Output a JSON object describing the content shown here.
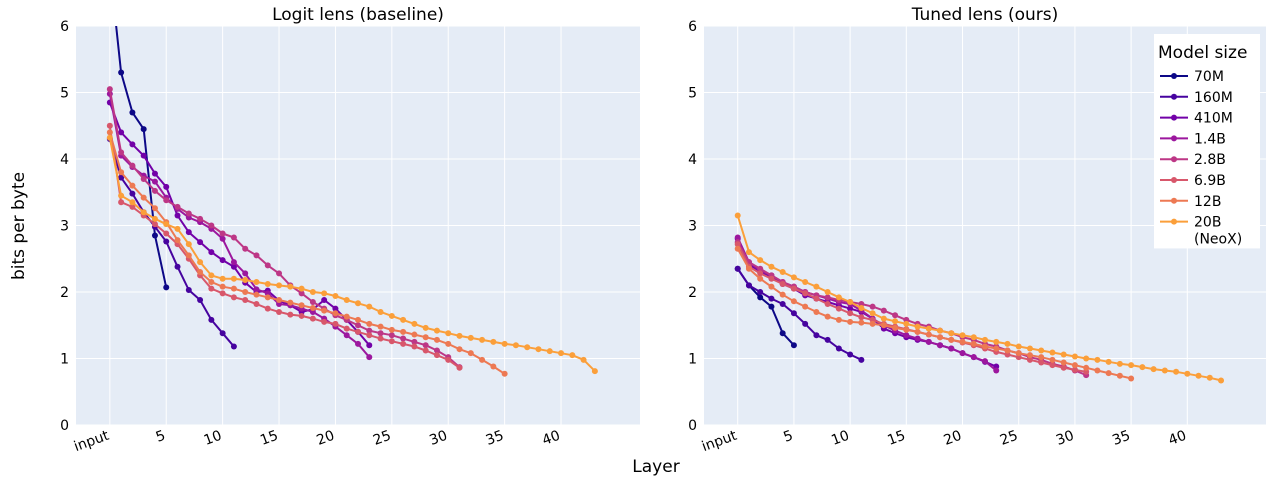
{
  "xlabel": "Layer",
  "ylabel": "bits per byte",
  "legend_title": "Model size",
  "series_colors": {
    "70M": "#0d0887",
    "160M": "#46039f",
    "410M": "#7201a8",
    "1.4B": "#9c179e",
    "2.8B": "#bd3786",
    "6.9B": "#d8576b",
    "12B": "#ed7953",
    "20B (NeoX)": "#fb9f3a"
  },
  "chart_data": [
    {
      "type": "line",
      "title": "Logit lens (baseline)",
      "ylim": [
        0,
        6
      ],
      "xlim": [
        -3,
        47
      ],
      "xticks": [
        0,
        5,
        10,
        15,
        20,
        25,
        30,
        35,
        40
      ],
      "xticklabels": [
        "input",
        "5",
        "10",
        "15",
        "20",
        "25",
        "30",
        "35",
        "40"
      ],
      "yticks": [
        0,
        1,
        2,
        3,
        4,
        5,
        6
      ],
      "grid": true,
      "series": [
        {
          "name": "70M",
          "x": [
            0,
            1,
            2,
            3,
            4,
            5
          ],
          "y": [
            6.9,
            5.3,
            4.7,
            4.45,
            2.85,
            2.07
          ]
        },
        {
          "name": "160M",
          "x": [
            0,
            1,
            2,
            3,
            4,
            5,
            6,
            7,
            8,
            9,
            10,
            11
          ],
          "y": [
            4.3,
            3.72,
            3.48,
            3.2,
            2.98,
            2.76,
            2.38,
            2.03,
            1.88,
            1.58,
            1.38,
            1.18
          ]
        },
        {
          "name": "410M",
          "x": [
            0,
            1,
            2,
            3,
            4,
            5,
            6,
            7,
            8,
            9,
            10,
            11,
            12,
            13,
            14,
            15,
            16,
            17,
            18,
            19,
            20,
            21,
            22,
            23
          ],
          "y": [
            4.85,
            4.4,
            4.22,
            4.05,
            3.78,
            3.58,
            3.15,
            2.9,
            2.75,
            2.6,
            2.48,
            2.38,
            2.14,
            2.0,
            2.02,
            1.87,
            1.8,
            1.7,
            1.74,
            1.88,
            1.75,
            1.58,
            1.4,
            1.2
          ]
        },
        {
          "name": "1.4B",
          "x": [
            0,
            1,
            2,
            3,
            4,
            5,
            6,
            7,
            8,
            9,
            10,
            11,
            12,
            13,
            14,
            15,
            16,
            17,
            18,
            19,
            20,
            21,
            22,
            23
          ],
          "y": [
            4.98,
            4.05,
            3.88,
            3.75,
            3.66,
            3.42,
            3.25,
            3.12,
            3.05,
            2.95,
            2.8,
            2.45,
            2.28,
            2.04,
            1.98,
            1.82,
            1.8,
            1.75,
            1.7,
            1.6,
            1.48,
            1.35,
            1.22,
            1.02
          ]
        },
        {
          "name": "2.8B",
          "x": [
            0,
            1,
            2,
            3,
            4,
            5,
            6,
            7,
            8,
            9,
            10,
            11,
            12,
            13,
            14,
            15,
            16,
            17,
            18,
            19,
            20,
            21,
            22,
            23,
            24,
            25,
            26,
            27,
            28,
            29,
            30,
            31
          ],
          "y": [
            5.05,
            4.1,
            3.9,
            3.7,
            3.52,
            3.38,
            3.28,
            3.18,
            3.1,
            3.0,
            2.88,
            2.82,
            2.65,
            2.55,
            2.4,
            2.28,
            2.1,
            1.98,
            1.85,
            1.75,
            1.65,
            1.58,
            1.5,
            1.42,
            1.38,
            1.35,
            1.3,
            1.25,
            1.2,
            1.12,
            1.02,
            0.87
          ]
        },
        {
          "name": "6.9B",
          "x": [
            0,
            1,
            2,
            3,
            4,
            5,
            6,
            7,
            8,
            9,
            10,
            11,
            12,
            13,
            14,
            15,
            16,
            17,
            18,
            19,
            20,
            21,
            22,
            23,
            24,
            25,
            26,
            27,
            28,
            29,
            30,
            31
          ],
          "y": [
            4.5,
            3.35,
            3.28,
            3.15,
            3.02,
            2.88,
            2.72,
            2.5,
            2.25,
            2.05,
            1.98,
            1.92,
            1.88,
            1.82,
            1.75,
            1.7,
            1.66,
            1.64,
            1.6,
            1.55,
            1.52,
            1.45,
            1.4,
            1.35,
            1.3,
            1.26,
            1.22,
            1.18,
            1.12,
            1.05,
            0.98,
            0.86
          ]
        },
        {
          "name": "12B",
          "x": [
            0,
            1,
            2,
            3,
            4,
            5,
            6,
            7,
            8,
            9,
            10,
            11,
            12,
            13,
            14,
            15,
            16,
            17,
            18,
            19,
            20,
            21,
            22,
            23,
            24,
            25,
            26,
            27,
            28,
            29,
            30,
            31,
            32,
            33,
            34,
            35
          ],
          "y": [
            4.4,
            3.8,
            3.6,
            3.42,
            3.26,
            3.05,
            2.78,
            2.55,
            2.3,
            2.15,
            2.08,
            2.05,
            2.0,
            1.96,
            1.92,
            1.88,
            1.84,
            1.8,
            1.76,
            1.72,
            1.68,
            1.63,
            1.58,
            1.52,
            1.48,
            1.43,
            1.4,
            1.36,
            1.32,
            1.28,
            1.22,
            1.14,
            1.08,
            0.98,
            0.88,
            0.77
          ]
        },
        {
          "name": "20B (NeoX)",
          "x": [
            0,
            1,
            2,
            3,
            4,
            5,
            6,
            7,
            8,
            9,
            10,
            11,
            12,
            13,
            14,
            15,
            16,
            17,
            18,
            19,
            20,
            21,
            22,
            23,
            24,
            25,
            26,
            27,
            28,
            29,
            30,
            31,
            32,
            33,
            34,
            35,
            36,
            37,
            38,
            39,
            40,
            41,
            42,
            43
          ],
          "y": [
            4.32,
            3.45,
            3.35,
            3.2,
            3.1,
            3.02,
            2.95,
            2.72,
            2.45,
            2.25,
            2.2,
            2.2,
            2.18,
            2.15,
            2.12,
            2.1,
            2.08,
            2.05,
            2.0,
            1.98,
            1.94,
            1.88,
            1.83,
            1.78,
            1.7,
            1.64,
            1.58,
            1.52,
            1.46,
            1.42,
            1.38,
            1.34,
            1.31,
            1.28,
            1.25,
            1.22,
            1.2,
            1.17,
            1.14,
            1.11,
            1.08,
            1.05,
            0.98,
            0.81
          ]
        }
      ]
    },
    {
      "type": "line",
      "title": "Tuned lens (ours)",
      "ylim": [
        0,
        6
      ],
      "xlim": [
        -3,
        47
      ],
      "xticks": [
        0,
        5,
        10,
        15,
        20,
        25,
        30,
        35,
        40
      ],
      "xticklabels": [
        "input",
        "5",
        "10",
        "15",
        "20",
        "25",
        "30",
        "35",
        "40"
      ],
      "yticks": [
        0,
        1,
        2,
        3,
        4,
        5,
        6
      ],
      "grid": true,
      "legend": "top-right",
      "series": [
        {
          "name": "70M",
          "x": [
            0,
            1,
            2,
            3,
            4,
            5
          ],
          "y": [
            2.35,
            2.1,
            1.92,
            1.78,
            1.38,
            1.2
          ]
        },
        {
          "name": "160M",
          "x": [
            0,
            1,
            2,
            3,
            4,
            5,
            6,
            7,
            8,
            9,
            10,
            11
          ],
          "y": [
            2.35,
            2.1,
            2.0,
            1.9,
            1.82,
            1.68,
            1.52,
            1.35,
            1.28,
            1.15,
            1.06,
            0.98
          ]
        },
        {
          "name": "410M",
          "x": [
            0,
            1,
            2,
            3,
            4,
            5,
            6,
            7,
            8,
            9,
            10,
            11,
            12,
            13,
            14,
            15,
            16,
            17,
            18,
            19,
            20,
            21,
            22,
            23
          ],
          "y": [
            2.8,
            2.42,
            2.3,
            2.22,
            2.12,
            2.05,
            1.95,
            1.9,
            1.85,
            1.8,
            1.75,
            1.7,
            1.6,
            1.45,
            1.38,
            1.32,
            1.28,
            1.25,
            1.2,
            1.15,
            1.08,
            1.02,
            0.95,
            0.88
          ]
        },
        {
          "name": "1.4B",
          "x": [
            0,
            1,
            2,
            3,
            4,
            5,
            6,
            7,
            8,
            9,
            10,
            11,
            12,
            13,
            14,
            15,
            16,
            17,
            18,
            19,
            20,
            21,
            22,
            23
          ],
          "y": [
            2.82,
            2.45,
            2.32,
            2.25,
            2.15,
            2.08,
            2.0,
            1.95,
            1.9,
            1.85,
            1.82,
            1.72,
            1.6,
            1.5,
            1.42,
            1.35,
            1.3,
            1.25,
            1.2,
            1.15,
            1.08,
            1.02,
            0.96,
            0.82
          ]
        },
        {
          "name": "2.8B",
          "x": [
            0,
            1,
            2,
            3,
            4,
            5,
            6,
            7,
            8,
            9,
            10,
            11,
            12,
            13,
            14,
            15,
            16,
            17,
            18,
            19,
            20,
            21,
            22,
            23,
            24,
            25,
            26,
            27,
            28,
            29,
            30,
            31
          ],
          "y": [
            2.75,
            2.45,
            2.35,
            2.25,
            2.15,
            2.08,
            2.0,
            1.95,
            1.92,
            1.88,
            1.85,
            1.82,
            1.78,
            1.72,
            1.65,
            1.58,
            1.52,
            1.48,
            1.42,
            1.38,
            1.32,
            1.28,
            1.22,
            1.18,
            1.12,
            1.08,
            1.02,
            0.98,
            0.92,
            0.88,
            0.82,
            0.75
          ]
        },
        {
          "name": "6.9B",
          "x": [
            0,
            1,
            2,
            3,
            4,
            5,
            6,
            7,
            8,
            9,
            10,
            11,
            12,
            13,
            14,
            15,
            16,
            17,
            18,
            19,
            20,
            21,
            22,
            23,
            24,
            25,
            26,
            27,
            28,
            29,
            30,
            31
          ],
          "y": [
            2.72,
            2.38,
            2.28,
            2.2,
            2.12,
            2.05,
            1.98,
            1.9,
            1.82,
            1.75,
            1.68,
            1.62,
            1.58,
            1.52,
            1.48,
            1.44,
            1.4,
            1.36,
            1.32,
            1.28,
            1.24,
            1.2,
            1.15,
            1.1,
            1.06,
            1.02,
            0.98,
            0.94,
            0.9,
            0.86,
            0.83,
            0.8
          ]
        },
        {
          "name": "12B",
          "x": [
            0,
            1,
            2,
            3,
            4,
            5,
            6,
            7,
            8,
            9,
            10,
            11,
            12,
            13,
            14,
            15,
            16,
            17,
            18,
            19,
            20,
            21,
            22,
            23,
            24,
            25,
            26,
            27,
            28,
            29,
            30,
            31,
            32,
            33,
            34,
            35
          ],
          "y": [
            2.65,
            2.35,
            2.2,
            2.08,
            1.96,
            1.86,
            1.78,
            1.7,
            1.63,
            1.58,
            1.55,
            1.54,
            1.52,
            1.5,
            1.46,
            1.43,
            1.4,
            1.36,
            1.32,
            1.28,
            1.25,
            1.22,
            1.18,
            1.15,
            1.12,
            1.08,
            1.05,
            1.02,
            0.98,
            0.94,
            0.9,
            0.86,
            0.82,
            0.78,
            0.74,
            0.7
          ]
        },
        {
          "name": "20B (NeoX)",
          "x": [
            0,
            1,
            2,
            3,
            4,
            5,
            6,
            7,
            8,
            9,
            10,
            11,
            12,
            13,
            14,
            15,
            16,
            17,
            18,
            19,
            20,
            21,
            22,
            23,
            24,
            25,
            26,
            27,
            28,
            29,
            30,
            31,
            32,
            33,
            34,
            35,
            36,
            37,
            38,
            39,
            40,
            41,
            42,
            43
          ],
          "y": [
            3.15,
            2.6,
            2.48,
            2.38,
            2.3,
            2.22,
            2.15,
            2.08,
            2.0,
            1.92,
            1.85,
            1.76,
            1.68,
            1.6,
            1.56,
            1.52,
            1.48,
            1.45,
            1.42,
            1.38,
            1.35,
            1.32,
            1.28,
            1.25,
            1.22,
            1.18,
            1.15,
            1.12,
            1.09,
            1.06,
            1.03,
            1.0,
            0.98,
            0.95,
            0.92,
            0.9,
            0.87,
            0.84,
            0.82,
            0.8,
            0.77,
            0.74,
            0.71,
            0.67
          ]
        }
      ]
    }
  ]
}
